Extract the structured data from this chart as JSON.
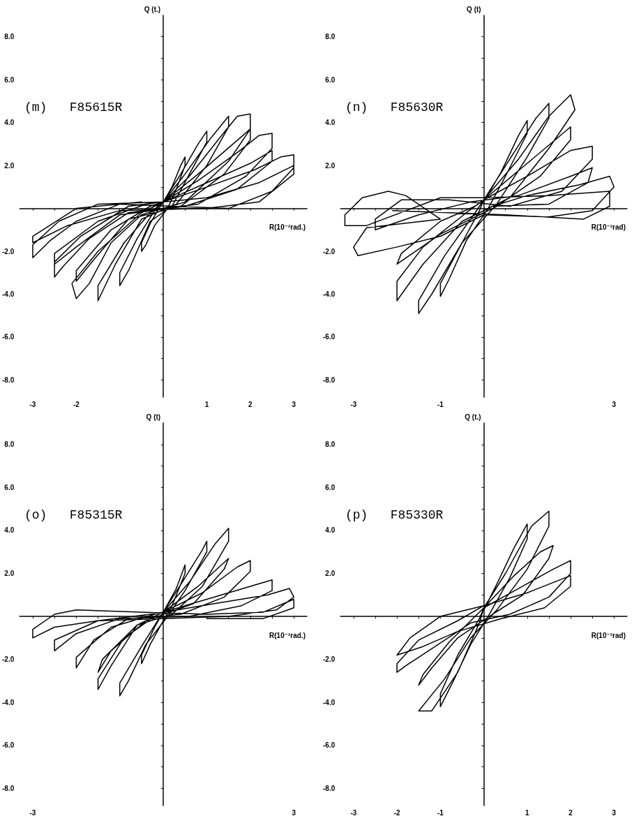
{
  "chart_data": [
    {
      "type": "line",
      "title": "(m)   F85615R",
      "xlabel": "R(10⁻²rad.)",
      "ylabel": "Q (t.)",
      "marker": "none",
      "line_style": "solid",
      "grid": false,
      "xlim": [
        -3.3,
        3.3
      ],
      "ylim": [
        -8.8,
        9.0
      ],
      "xticks": [
        {
          "value": -3,
          "label": "-3"
        },
        {
          "value": -2.5,
          "label": null
        },
        {
          "value": -2,
          "label": "-2"
        },
        {
          "value": -1.5,
          "label": null
        },
        {
          "value": -1,
          "label": null
        },
        {
          "value": -0.5,
          "label": null
        },
        {
          "value": 0.5,
          "label": null
        },
        {
          "value": 1,
          "label": "1"
        },
        {
          "value": 1.5,
          "label": null
        },
        {
          "value": 2,
          "label": "2"
        },
        {
          "value": 2.5,
          "label": null
        },
        {
          "value": 3,
          "label": "3"
        }
      ],
      "yticks": [
        {
          "value": -8,
          "label": "-8.0"
        },
        {
          "value": -7,
          "label": null
        },
        {
          "value": -6,
          "label": "-6.0"
        },
        {
          "value": -5,
          "label": null
        },
        {
          "value": -4,
          "label": "-4.0"
        },
        {
          "value": -3,
          "label": null
        },
        {
          "value": -2,
          "label": "-2.0"
        },
        {
          "value": -1,
          "label": null
        },
        {
          "value": 1,
          "label": null
        },
        {
          "value": 2,
          "label": "2.0"
        },
        {
          "value": 3,
          "label": null
        },
        {
          "value": 4,
          "label": "4.0"
        },
        {
          "value": 5,
          "label": null
        },
        {
          "value": 6,
          "label": "6.0"
        },
        {
          "value": 7,
          "label": null
        },
        {
          "value": 8,
          "label": "8.0"
        }
      ],
      "series": [
        {
          "color": "#000000",
          "x": [
            0,
            0.2,
            0.4,
            0.5,
            0.5,
            0.3,
            0.1,
            -0.2,
            -0.4,
            -0.5,
            -0.5,
            -0.3,
            -0.1,
            0,
            0.4,
            0.8,
            1.0,
            1.0,
            0.6,
            0.2,
            -0.3,
            -0.8,
            -1.0,
            -1.0,
            -0.6,
            -0.2,
            0,
            0.5,
            1.1,
            1.5,
            1.5,
            1.0,
            0.3,
            -0.5,
            -1.1,
            -1.5,
            -1.5,
            -0.9,
            -0.3,
            0,
            0.6,
            1.3,
            1.7,
            2.0,
            2.0,
            1.5,
            0.5,
            -0.5,
            -1.2,
            -1.7,
            -2.0,
            -2.1,
            -1.5,
            -0.5,
            0,
            0.8,
            1.6,
            2.0,
            2.0,
            1.4,
            0.4,
            -0.8,
            -1.6,
            -2.0,
            -2.0,
            -1.2,
            -0.3,
            0,
            0.8,
            1.7,
            2.2,
            2.5,
            2.5,
            1.9,
            0.8,
            -0.8,
            -1.7,
            -2.3,
            -2.5,
            -2.5,
            -1.9,
            -0.8,
            0,
            1.0,
            2.0,
            2.5,
            2.5,
            1.7,
            0.5,
            -1.0,
            -2.0,
            -2.5,
            -2.5,
            -1.5,
            -0.4,
            0,
            1.0,
            2.1,
            2.7,
            3.0,
            3.0,
            2.5,
            1.5,
            -1.0,
            -2.0,
            -2.6,
            -3.0,
            -3.0,
            -2.4,
            -1.5,
            0,
            1.0,
            2.2,
            3.0,
            3.0,
            2.2,
            1.0,
            -1.0,
            -2.2,
            -3.0,
            -3.0,
            -2.0,
            -0.5
          ],
          "values": [
            0.3,
            1.0,
            2.0,
            2.4,
            2.0,
            0.9,
            0,
            -0.8,
            -1.7,
            -2.0,
            -1.6,
            -0.7,
            0,
            0.3,
            1.6,
            3.0,
            3.6,
            3.1,
            1.6,
            0.1,
            -0.6,
            -2.9,
            -3.6,
            -3.0,
            -1.4,
            -0.1,
            0.3,
            1.6,
            3.3,
            4.3,
            3.8,
            2.0,
            0.2,
            -0.5,
            -2.6,
            -4.3,
            -3.6,
            -1.6,
            -0.2,
            0.3,
            1.5,
            3.3,
            4.3,
            4.4,
            3.7,
            2.2,
            0.3,
            -0.3,
            -1.6,
            -3.5,
            -4.2,
            -3.5,
            -2.0,
            -0.2,
            0.3,
            1.6,
            3.0,
            3.7,
            3.2,
            1.6,
            0.1,
            -0.5,
            -2.4,
            -3.4,
            -2.9,
            -1.0,
            0.1,
            0.3,
            1.3,
            2.6,
            3.4,
            3.5,
            2.8,
            1.5,
            0.2,
            -0.2,
            -1.4,
            -2.7,
            -3.2,
            -2.5,
            -1.3,
            0.1,
            0.3,
            1.2,
            2.1,
            2.7,
            2.2,
            0.9,
            0.1,
            -0.3,
            -1.8,
            -2.6,
            -2.1,
            -0.6,
            0.2,
            0.3,
            1.0,
            1.8,
            2.4,
            2.5,
            1.9,
            0.8,
            0.0,
            0.2,
            -0.6,
            -1.5,
            -2.3,
            -1.7,
            -0.6,
            0.2,
            0.3,
            0.5,
            1.2,
            2.0,
            1.6,
            0.3,
            0.0,
            -0.1,
            -0.8,
            -1.6,
            -1.3,
            0.0,
            0.3
          ]
        }
      ]
    },
    {
      "type": "line",
      "title": "(n)   F85630R",
      "xlabel": "R(10⁻²rad)",
      "ylabel": "Q (t)",
      "marker": "none",
      "line_style": "solid",
      "grid": false,
      "xlim": [
        -3.3,
        3.3
      ],
      "ylim": [
        -8.8,
        9.0
      ],
      "xticks": [
        {
          "value": -3,
          "label": "-3"
        },
        {
          "value": -2.5,
          "label": null
        },
        {
          "value": -2,
          "label": null
        },
        {
          "value": -1.5,
          "label": null
        },
        {
          "value": -1,
          "label": "-1"
        },
        {
          "value": -0.5,
          "label": null
        },
        {
          "value": 0.5,
          "label": null
        },
        {
          "value": 1,
          "label": null
        },
        {
          "value": 1.5,
          "label": null
        },
        {
          "value": 2,
          "label": null
        },
        {
          "value": 2.5,
          "label": null
        },
        {
          "value": 3,
          "label": "3"
        }
      ],
      "yticks": [
        {
          "value": -8,
          "label": "-8.0"
        },
        {
          "value": -7,
          "label": null
        },
        {
          "value": -6,
          "label": "-6.0"
        },
        {
          "value": -5,
          "label": null
        },
        {
          "value": -4,
          "label": "-4.0"
        },
        {
          "value": -3,
          "label": null
        },
        {
          "value": -2,
          "label": "-2.0"
        },
        {
          "value": -1,
          "label": null
        },
        {
          "value": 1,
          "label": null
        },
        {
          "value": 2,
          "label": "2.0"
        },
        {
          "value": 3,
          "label": null
        },
        {
          "value": 4,
          "label": "4.0"
        },
        {
          "value": 5,
          "label": null
        },
        {
          "value": 6,
          "label": "6.0"
        },
        {
          "value": 7,
          "label": null
        },
        {
          "value": 8,
          "label": "8.0"
        }
      ],
      "series": [
        {
          "color": "#000000",
          "x": [
            0,
            0.4,
            0.8,
            1.0,
            1.0,
            0.5,
            0.1,
            -0.4,
            -0.8,
            -1.0,
            -1.0,
            -0.5,
            -0.1,
            0,
            0.6,
            1.2,
            1.5,
            1.5,
            1.0,
            0.3,
            -0.5,
            -1.2,
            -1.5,
            -1.5,
            -0.9,
            -0.2,
            0,
            0.8,
            1.5,
            2.0,
            2.1,
            1.5,
            0.6,
            -0.5,
            -1.4,
            -2.0,
            -2.0,
            -1.4,
            -0.4,
            0,
            1.0,
            2.0,
            2.0,
            1.3,
            0.3,
            -1.0,
            -2.0,
            -1.9,
            -1.0,
            -0.2,
            0,
            1.0,
            2.0,
            2.5,
            2.5,
            1.8,
            0.6,
            -0.8,
            -1.9,
            -2.5,
            -2.5,
            -1.5,
            -0.3,
            0.8,
            2.0,
            2.5,
            2.4,
            1.5,
            0.2,
            1.0,
            2.2,
            2.9,
            3.0,
            2.5,
            1.5,
            0,
            -1.0,
            -2.0,
            -2.9,
            -3.0,
            -2.7,
            -1.0,
            -1.8,
            -2.2,
            -2.8,
            -3.2,
            -3.2,
            -2.7,
            -1.0,
            0,
            1.5,
            2.9,
            2.9,
            2.3,
            0.5,
            -2.1
          ],
          "values": [
            0.3,
            1.7,
            3.4,
            4.1,
            3.5,
            1.5,
            0,
            -1.5,
            -3.3,
            -4.1,
            -3.5,
            -1.6,
            -0.1,
            0.4,
            2.3,
            4.2,
            4.9,
            4.2,
            2.4,
            0.2,
            -1.6,
            -4.0,
            -4.9,
            -4.3,
            -2.2,
            -0.2,
            0.4,
            2.3,
            4.3,
            5.3,
            4.6,
            2.8,
            0.5,
            -0.6,
            -2.6,
            -4.3,
            -3.4,
            -1.8,
            -0.2,
            0.4,
            2.1,
            3.8,
            3.2,
            1.5,
            0.1,
            -1.2,
            -2.6,
            -2.1,
            -0.6,
            0.1,
            0.4,
            1.5,
            2.7,
            2.9,
            2.3,
            0.8,
            0.1,
            0.4,
            0.4,
            -0.5,
            -1.0,
            -0.3,
            0.3,
            0.6,
            1.5,
            1.9,
            1.2,
            0.2,
            0.1,
            0.6,
            1.1,
            1.5,
            1.0,
            -0.1,
            -0.4,
            -0.3,
            -1.3,
            -1.8,
            -2.2,
            -1.8,
            -0.9,
            -0.5,
            0.6,
            0.8,
            0.5,
            -0.3,
            -0.8,
            -0.8,
            0.5,
            0.5,
            0.6,
            0.8,
            0.1,
            -0.5,
            -0.3,
            -0.1
          ]
        }
      ]
    },
    {
      "type": "line",
      "title": "(o)   F85315R",
      "xlabel": "R(10⁻²rad.)",
      "ylabel": "Q (t)",
      "marker": "none",
      "line_style": "solid",
      "grid": false,
      "xlim": [
        -3.3,
        3.3
      ],
      "ylim": [
        -8.8,
        9.0
      ],
      "xticks": [
        {
          "value": -3,
          "label": "-3"
        },
        {
          "value": -2.5,
          "label": null
        },
        {
          "value": -2,
          "label": null
        },
        {
          "value": -1.5,
          "label": null
        },
        {
          "value": -1,
          "label": null
        },
        {
          "value": -0.5,
          "label": null
        },
        {
          "value": 0.5,
          "label": null
        },
        {
          "value": 1,
          "label": null
        },
        {
          "value": 1.5,
          "label": null
        },
        {
          "value": 2,
          "label": null
        },
        {
          "value": 2.5,
          "label": null
        },
        {
          "value": 3,
          "label": "3"
        }
      ],
      "yticks": [
        {
          "value": -8,
          "label": "-8.0"
        },
        {
          "value": -7,
          "label": null
        },
        {
          "value": -6,
          "label": "-6.0"
        },
        {
          "value": -5,
          "label": null
        },
        {
          "value": -4,
          "label": "-4.0"
        },
        {
          "value": -3,
          "label": null
        },
        {
          "value": -2,
          "label": "-2.0"
        },
        {
          "value": -1,
          "label": null
        },
        {
          "value": 1,
          "label": null
        },
        {
          "value": 2,
          "label": "2.0"
        },
        {
          "value": 3,
          "label": null
        },
        {
          "value": 4,
          "label": "4.0"
        },
        {
          "value": 5,
          "label": null
        },
        {
          "value": 6,
          "label": "6.0"
        },
        {
          "value": 7,
          "label": null
        },
        {
          "value": 8,
          "label": "8.0"
        }
      ],
      "series": [
        {
          "color": "#000000",
          "x": [
            0,
            0.3,
            0.5,
            0.5,
            0.2,
            0,
            -0.3,
            -0.5,
            -0.5,
            -0.2,
            0,
            0.5,
            0.9,
            1.0,
            1.0,
            0.5,
            0.1,
            -0.4,
            -0.8,
            -1.0,
            -1.0,
            -0.5,
            -0.1,
            0,
            0.6,
            1.2,
            1.5,
            1.5,
            0.9,
            0.2,
            -0.6,
            -1.2,
            -1.5,
            -1.5,
            -0.9,
            -0.2,
            0,
            0.8,
            1.5,
            1.4,
            0.7,
            -0.4,
            -1.2,
            -1.5,
            -1.4,
            -0.6,
            0,
            0.9,
            1.7,
            2.0,
            2.0,
            1.4,
            0.4,
            -0.8,
            -1.6,
            -2.0,
            -2.0,
            -1.2,
            -0.2,
            0,
            1.0,
            2.0,
            2.5,
            2.5,
            1.8,
            0.6,
            -1.0,
            -2.0,
            -2.5,
            -2.5,
            -1.5,
            -0.3,
            0,
            1.2,
            2.4,
            2.9,
            3.0,
            2.6,
            1.5,
            0,
            -1.5,
            -2.5,
            -3.0,
            -3.0,
            -2.5,
            -2.0,
            -0.5,
            1.0,
            2.3,
            3.0,
            3.0,
            2.3,
            1.0
          ],
          "values": [
            0.2,
            1.3,
            2.4,
            2.0,
            0.5,
            -0.2,
            -1.3,
            -2.2,
            -1.8,
            -0.5,
            0.2,
            1.8,
            3.1,
            3.5,
            3.0,
            1.2,
            0,
            -1.3,
            -3.0,
            -3.7,
            -3.1,
            -1.4,
            -0.1,
            0.2,
            1.6,
            3.4,
            4.1,
            3.5,
            1.4,
            0.1,
            -0.4,
            -2.3,
            -3.4,
            -2.9,
            -1.0,
            0,
            0.2,
            1.4,
            2.7,
            2.2,
            0.6,
            -0.2,
            -1.6,
            -2.6,
            -2.0,
            -0.4,
            0.2,
            1.1,
            2.3,
            2.6,
            2.1,
            0.9,
            0.1,
            -0.1,
            -1.1,
            -2.4,
            -1.9,
            -0.5,
            0.1,
            0.2,
            0.8,
            1.4,
            1.7,
            1.2,
            0.5,
            0.0,
            -0.1,
            -0.8,
            -1.6,
            -1.1,
            -0.2,
            0.1,
            0.2,
            0.6,
            1.0,
            1.3,
            0.9,
            0.3,
            0.0,
            -0.1,
            -0.2,
            -0.5,
            -1.0,
            -0.6,
            0.1,
            0.3,
            0.2,
            0.1,
            0.2,
            0.8,
            0.4,
            -0.1,
            -0.1
          ]
        }
      ]
    },
    {
      "type": "line",
      "title": "(p)   F85330R",
      "xlabel": "R(10⁻²rad)",
      "ylabel": "Q (t.)",
      "marker": "none",
      "line_style": "solid",
      "grid": false,
      "xlim": [
        -3.3,
        3.3
      ],
      "ylim": [
        -8.8,
        9.0
      ],
      "xticks": [
        {
          "value": -3,
          "label": "-3"
        },
        {
          "value": -2.5,
          "label": null
        },
        {
          "value": -2,
          "label": "-2"
        },
        {
          "value": -1.5,
          "label": null
        },
        {
          "value": -1,
          "label": "-1"
        },
        {
          "value": -0.5,
          "label": null
        },
        {
          "value": 0.5,
          "label": null
        },
        {
          "value": 1,
          "label": "1"
        },
        {
          "value": 1.5,
          "label": null
        },
        {
          "value": 2,
          "label": "2"
        },
        {
          "value": 2.5,
          "label": null
        },
        {
          "value": 3,
          "label": "3"
        }
      ],
      "yticks": [
        {
          "value": -8,
          "label": "-8.0"
        },
        {
          "value": -7,
          "label": null
        },
        {
          "value": -6,
          "label": "-6.0"
        },
        {
          "value": -5,
          "label": null
        },
        {
          "value": -4,
          "label": "-4.0"
        },
        {
          "value": -3,
          "label": null
        },
        {
          "value": -2,
          "label": "-2.0"
        },
        {
          "value": -1,
          "label": null
        },
        {
          "value": 1,
          "label": null
        },
        {
          "value": 2,
          "label": "2.0"
        },
        {
          "value": 3,
          "label": null
        },
        {
          "value": 4,
          "label": "4.0"
        },
        {
          "value": 5,
          "label": null
        },
        {
          "value": 6,
          "label": "6.0"
        },
        {
          "value": 7,
          "label": null
        },
        {
          "value": 8,
          "label": "8.0"
        }
      ],
      "series": [
        {
          "color": "#000000",
          "x": [
            0,
            0.3,
            0.7,
            1.0,
            1.0,
            0.6,
            0.1,
            -0.3,
            -0.7,
            -1.0,
            -1.0,
            -0.6,
            -0.1,
            0,
            0.5,
            1.1,
            1.5,
            1.5,
            1.0,
            0.3,
            -0.3,
            -0.9,
            -1.5,
            -1.2,
            -0.6,
            -0.1,
            0,
            0.7,
            1.3,
            1.6,
            1.5,
            0.9,
            0.2,
            -0.6,
            -1.2,
            -1.5,
            -1.4,
            -0.8,
            -0.2,
            0,
            0.8,
            1.6,
            2.0,
            2.0,
            1.5,
            0.6,
            -0.3,
            -1.2,
            -1.8,
            -2.0,
            -2.0,
            -1.5,
            -0.6,
            0,
            1.0,
            2.0,
            2.0,
            1.4,
            0.4,
            -0.6,
            -1.4,
            -2.0,
            -1.7,
            -1.0,
            0
          ],
          "values": [
            0.3,
            1.5,
            3.2,
            4.3,
            3.6,
            1.8,
            0,
            -1.3,
            -3.0,
            -4.2,
            -3.6,
            -1.8,
            -0.1,
            0.4,
            2.0,
            4.2,
            4.9,
            4.2,
            2.2,
            0.3,
            -1.0,
            -2.9,
            -4.4,
            -4.4,
            -2.6,
            -0.3,
            0.4,
            1.9,
            3.0,
            3.3,
            2.7,
            1.0,
            0.1,
            -1.0,
            -2.4,
            -3.2,
            -2.7,
            -1.2,
            0,
            0.4,
            1.3,
            2.2,
            2.6,
            2.0,
            0.9,
            0.1,
            -0.3,
            -1.5,
            -2.3,
            -2.6,
            -2.2,
            -1.1,
            -0.2,
            0.5,
            1.1,
            1.9,
            1.4,
            0.4,
            -0.1,
            -0.7,
            -1.4,
            -1.8,
            -1.0,
            0,
            0.5
          ]
        }
      ]
    }
  ]
}
